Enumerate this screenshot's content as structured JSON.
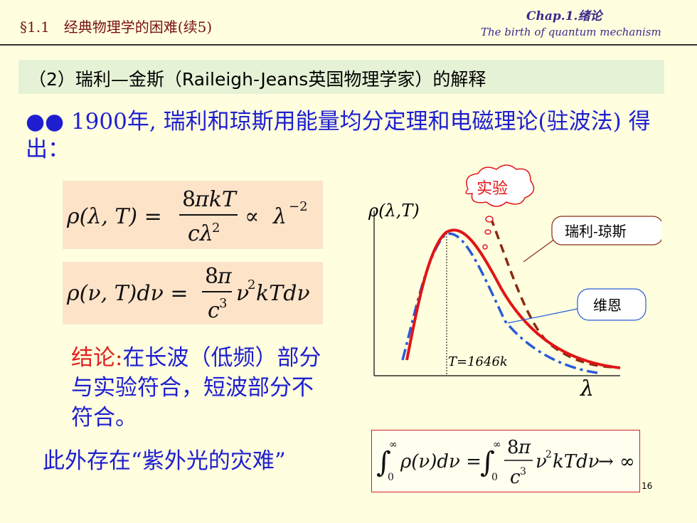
{
  "header": {
    "title": "§1.1　经典物理学的困难(续5)",
    "chapter": "Chap.1.绪论",
    "subtitle": "The birth of quantum mechanism"
  },
  "section": {
    "heading": "（2）瑞利—金斯（Raileigh-Jeans英国物理学家）的解释"
  },
  "intro": {
    "bullet": "●●",
    "text": " 1900年, 瑞利和琼斯用能量均分定理和电磁理论(驻波法) 得出："
  },
  "conclusion": {
    "label": "结论:",
    "text": "在长波（低频）部分与实验符合，短波部分不符合。"
  },
  "uv_catastrophe": "此外存在“紫外光的灾难”",
  "graph": {
    "ylabel": "ρ(λ,T)",
    "xlabel": "λ",
    "temperature_label": "T=1646k",
    "callouts": {
      "experiment": "实验",
      "rayleigh_jeans": "瑞利-琼斯",
      "wien": "维恩"
    },
    "colors": {
      "experiment": "#e01515",
      "rayleigh_jeans": "#8b2a10",
      "wien": "#2a5ad8"
    }
  },
  "page_number": "16"
}
